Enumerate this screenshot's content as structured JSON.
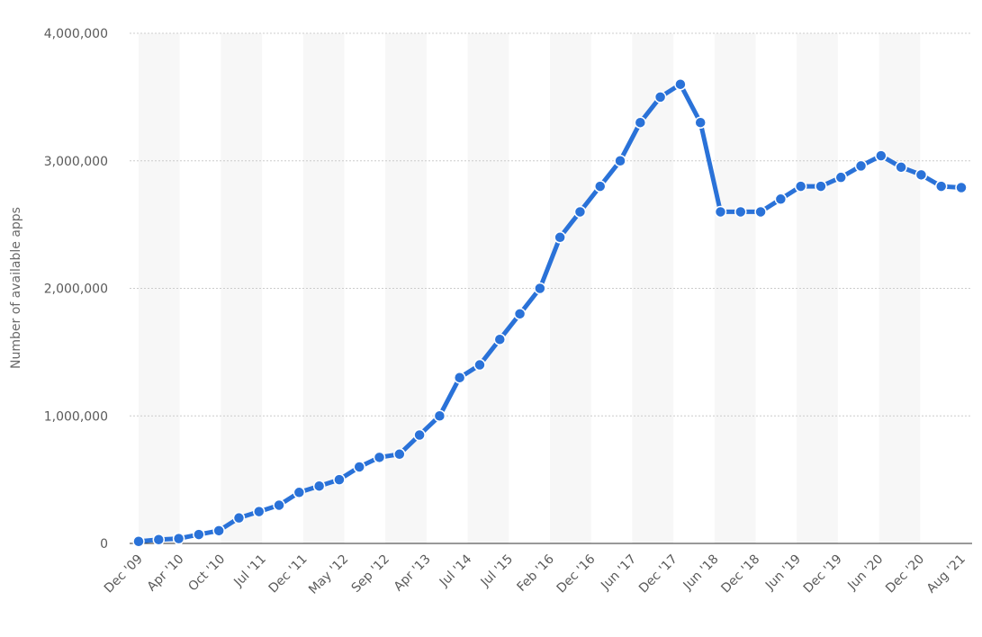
{
  "chart_data": {
    "type": "line",
    "title": "",
    "xlabel": "",
    "ylabel": "Number of available apps",
    "ylim": [
      0,
      4000000
    ],
    "yticks": [
      0,
      1000000,
      2000000,
      3000000,
      4000000
    ],
    "ytick_labels": [
      "0",
      "1,000,000",
      "2,000,000",
      "3,000,000",
      "4,000,000"
    ],
    "x_tick_labels": [
      "Dec '09",
      "Apr '10",
      "Oct '10",
      "Jul '11",
      "Dec '11",
      "May '12",
      "Sep '12",
      "Apr '13",
      "Jul '14",
      "Jul '15",
      "Feb '16",
      "Dec '16",
      "Jun '17",
      "Dec '17",
      "Jun '18",
      "Dec '18",
      "Jun '19",
      "Dec '19",
      "Jun '20",
      "Dec '20",
      "Aug '21"
    ],
    "grid": true,
    "colors": {
      "line": "#2a72d8",
      "grid": "#cccccc",
      "band": "#f7f7f7"
    },
    "series": [
      {
        "values": [
          16000,
          30000,
          38000,
          70000,
          100000,
          200000,
          250000,
          300000,
          400000,
          450000,
          500000,
          600000,
          675000,
          700000,
          850000,
          1000000,
          1300000,
          1400000,
          1600000,
          1800000,
          2000000,
          2400000,
          2600000,
          2800000,
          3000000,
          3300000,
          3500000,
          3600000,
          3300000,
          2600000,
          2600000,
          2600000,
          2700000,
          2800000,
          2800000,
          2870000,
          2960000,
          3040000,
          2950000,
          2890000,
          2800000,
          2790000
        ]
      }
    ]
  }
}
